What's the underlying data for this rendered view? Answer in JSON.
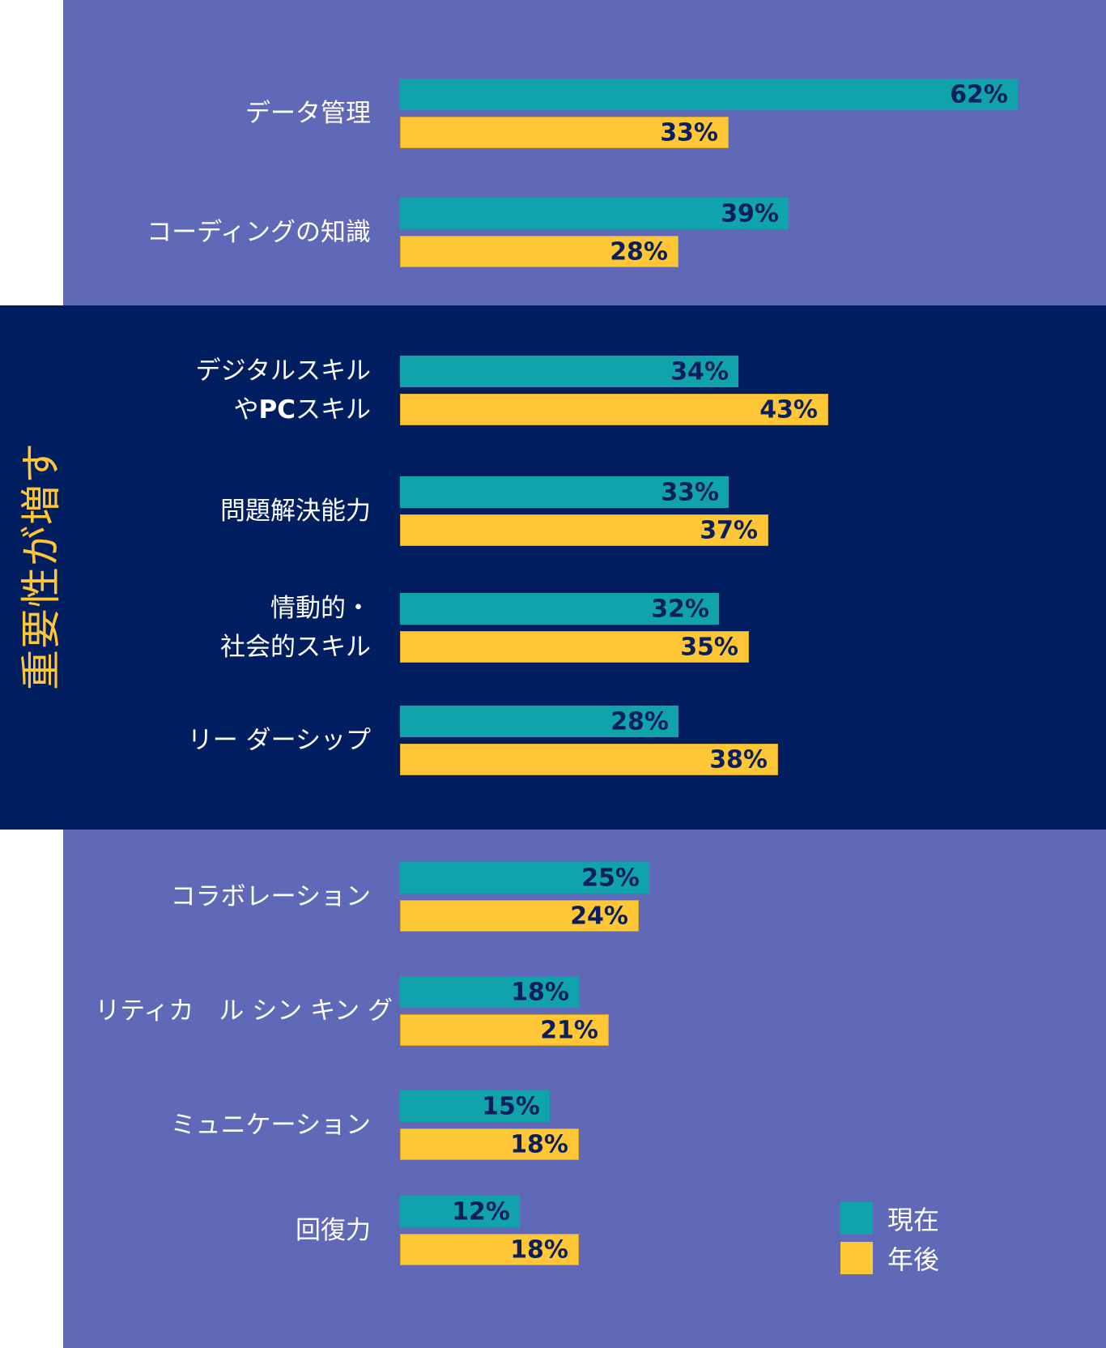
{
  "colors": {
    "panel_light": "#5f69b8",
    "panel_dark": "#001e60",
    "now": "#10a3ac",
    "after": "#ffc636",
    "value_text": "#0b1f5c",
    "title_text": "#ffc636"
  },
  "side_title": "重要性が増す",
  "legend": [
    {
      "label": "現在",
      "series": "now"
    },
    {
      "label": "年後",
      "series": "after"
    }
  ],
  "chart_data": {
    "type": "bar",
    "orientation": "horizontal",
    "title": "",
    "xlabel": "",
    "ylabel": "",
    "unit": "%",
    "xlim": [
      0,
      70
    ],
    "grid": false,
    "legend_position": "bottom-right",
    "categories": [
      {
        "lines": [
          "データ管理"
        ],
        "section": "top"
      },
      {
        "lines": [
          "コーディングの知識"
        ],
        "section": "top"
      },
      {
        "lines": [
          "デジタルスキル",
          "やPCスキル"
        ],
        "section": "highlight"
      },
      {
        "lines": [
          "問題解決能力"
        ],
        "section": "highlight"
      },
      {
        "lines": [
          "情動的・",
          "社会的スキル"
        ],
        "section": "highlight"
      },
      {
        "lines": [
          "リー ダーシップ"
        ],
        "section": "highlight"
      },
      {
        "lines": [
          "コラボレーション"
        ],
        "section": "bottom"
      },
      {
        "lines": [
          "リティカ　ル シン キン グ"
        ],
        "section": "bottom"
      },
      {
        "lines": [
          "ミュニケーション"
        ],
        "section": "bottom"
      },
      {
        "lines": [
          "回復力"
        ],
        "section": "bottom"
      }
    ],
    "series": [
      {
        "name": "現在",
        "key": "now",
        "values": [
          62,
          39,
          34,
          33,
          32,
          28,
          25,
          18,
          15,
          12
        ],
        "labels": [
          "62%",
          "39%",
          "34%",
          "33%",
          "32%",
          "28%",
          "25%",
          "18%",
          "15%",
          "12%"
        ]
      },
      {
        "name": "年後",
        "key": "after",
        "values": [
          33,
          28,
          43,
          37,
          35,
          38,
          24,
          21,
          18,
          18
        ],
        "labels": [
          "33%",
          "28%",
          "43%",
          "37%",
          "35%",
          "38%",
          "24%",
          "21%",
          "18%",
          "18%"
        ]
      }
    ]
  }
}
